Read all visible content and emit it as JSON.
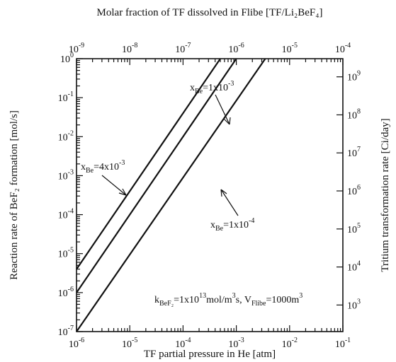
{
  "chart_data": {
    "type": "line",
    "xlabel": "TF partial pressure in He [atm]",
    "ylabel": "Reaction rate of BeF₂ formation [mol/s]",
    "top_label": "Molar fraction of TF dissolved in Flibe [TF/Li₂BeF₄]",
    "right_label": "Tritium transformation rate [Ci/day]",
    "x_scale": "log",
    "y_scale": "log",
    "xlim": [
      1e-06,
      0.1
    ],
    "ylim": [
      1e-07,
      1
    ],
    "top_xlim": [
      1e-09,
      0.0001
    ],
    "right_ylim": [
      200,
      3000000000.0
    ],
    "x_ticks": [
      {
        "base": "10",
        "exp": "-6"
      },
      {
        "base": "10",
        "exp": "-5"
      },
      {
        "base": "10",
        "exp": "-4"
      },
      {
        "base": "10",
        "exp": "-3"
      },
      {
        "base": "10",
        "exp": "-2"
      },
      {
        "base": "10",
        "exp": "-1"
      }
    ],
    "y_ticks": [
      {
        "base": "10",
        "exp": "-7"
      },
      {
        "base": "10",
        "exp": "-6"
      },
      {
        "base": "10",
        "exp": "-5"
      },
      {
        "base": "10",
        "exp": "-4"
      },
      {
        "base": "10",
        "exp": "-3"
      },
      {
        "base": "10",
        "exp": "-2"
      },
      {
        "base": "10",
        "exp": "-1"
      },
      {
        "base": "10",
        "exp": "0"
      }
    ],
    "top_ticks": [
      {
        "base": "10",
        "exp": "-9"
      },
      {
        "base": "10",
        "exp": "-8"
      },
      {
        "base": "10",
        "exp": "-7"
      },
      {
        "base": "10",
        "exp": "-6"
      },
      {
        "base": "10",
        "exp": "-5"
      },
      {
        "base": "10",
        "exp": "-4"
      }
    ],
    "right_ticks": [
      {
        "base": "10",
        "exp": "3"
      },
      {
        "base": "10",
        "exp": "4"
      },
      {
        "base": "10",
        "exp": "5"
      },
      {
        "base": "10",
        "exp": "6"
      },
      {
        "base": "10",
        "exp": "7"
      },
      {
        "base": "10",
        "exp": "8"
      },
      {
        "base": "10",
        "exp": "9"
      }
    ],
    "series": [
      {
        "name": "xBe=4x10-3",
        "x": [
          1e-06,
          0.0005
        ],
        "y": [
          4e-06,
          1
        ]
      },
      {
        "name": "xBe=1x10-3",
        "x": [
          1e-06,
          0.001
        ],
        "y": [
          1e-06,
          1
        ]
      },
      {
        "name": "xBe=1x10-4",
        "x": [
          1e-06,
          0.0035
        ],
        "y": [
          1e-07,
          1
        ]
      }
    ],
    "annotations": {
      "xbe_mid": {
        "a": "x",
        "b": "Be",
        "c": "=1x10",
        "d": "-3"
      },
      "xbe_left": {
        "a": "x",
        "b": "Be",
        "c": "=4x10",
        "d": "-3"
      },
      "xbe_right": {
        "a": "x",
        "b": "Be",
        "c": "=1x10",
        "d": "-4"
      },
      "params": {
        "k": "k",
        "k_sub": "BeF₂",
        "eq1": "=1x10",
        "exp13": "13",
        "units1": "mol/m",
        "exp3a": "3",
        "s_v": "s, V",
        "v_sub": "Flibe",
        "eq2": "=1000m",
        "exp3b": "3"
      }
    }
  }
}
